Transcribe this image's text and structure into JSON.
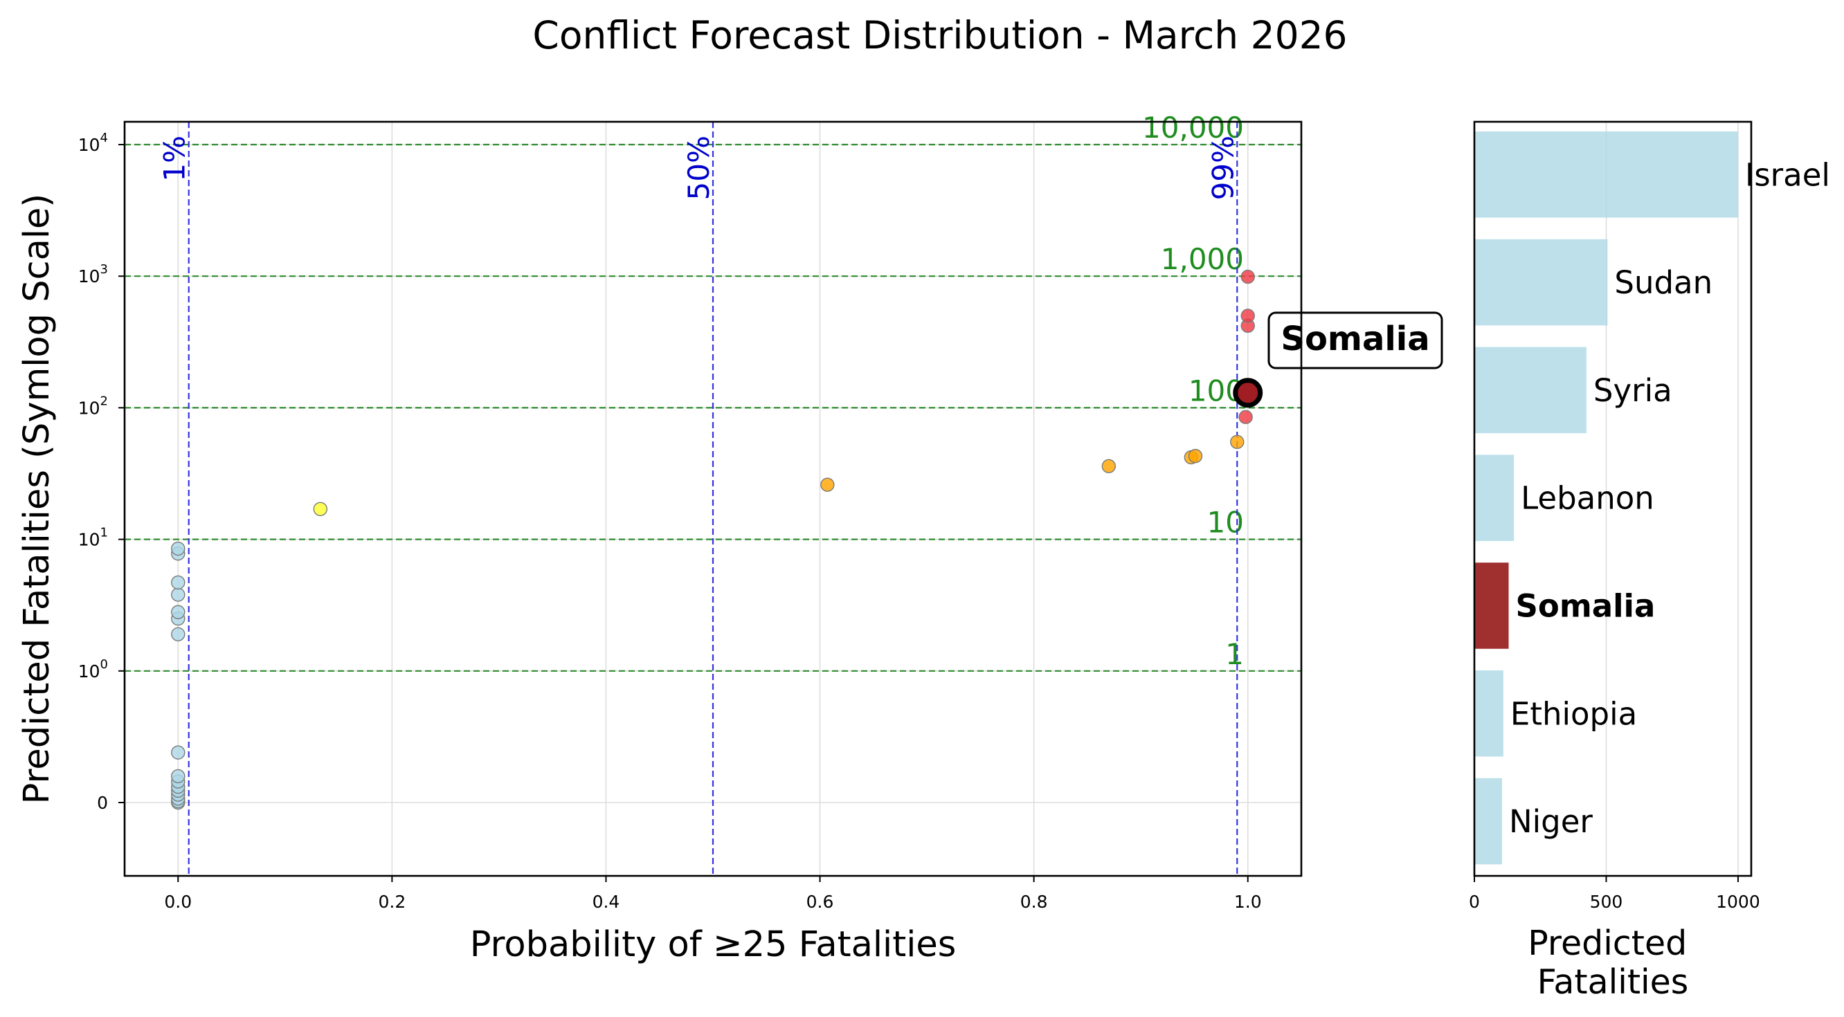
{
  "figure": {
    "title": "Conflict Forecast Distribution - March 2026"
  },
  "colors": {
    "low_point": "#add8e6",
    "mid_low_point": "#ffff33",
    "mid_point": "#ffa500",
    "high_point": "#f03c46",
    "highlight": "#a01e23",
    "highlight_bar": "#a03030",
    "bar": "#add8e6",
    "prob_line": "#3333dd",
    "fatality_line": "#2e8b2e",
    "fatality_label": "#1e8c1e",
    "prob_label": "#0000cc"
  },
  "chart_data": [
    {
      "type": "scatter",
      "xlabel": "Probability of ≥25 Fatalities",
      "ylabel": "Predicted Fatalities (Symlog Scale)",
      "xlim": [
        -0.05,
        1.05
      ],
      "ylim": [
        -0.7,
        12000
      ],
      "yscale": "symlog",
      "grid": true,
      "x_ticks": [
        {
          "value": 0.0,
          "label": "0.0"
        },
        {
          "value": 0.2,
          "label": "0.2"
        },
        {
          "value": 0.4,
          "label": "0.4"
        },
        {
          "value": 0.6,
          "label": "0.6"
        },
        {
          "value": 0.8,
          "label": "0.8"
        },
        {
          "value": 1.0,
          "label": "1.0"
        }
      ],
      "y_ticks": [
        {
          "value": 0,
          "base": "0",
          "exp": ""
        },
        {
          "value": 1,
          "base": "10",
          "exp": "0"
        },
        {
          "value": 10,
          "base": "10",
          "exp": "1"
        },
        {
          "value": 100,
          "base": "10",
          "exp": "2"
        },
        {
          "value": 1000,
          "base": "10",
          "exp": "3"
        },
        {
          "value": 10000,
          "base": "10",
          "exp": "4"
        }
      ],
      "probability_lines": [
        {
          "x": 0.01,
          "label": "1%"
        },
        {
          "x": 0.5,
          "label": "50%"
        },
        {
          "x": 0.99,
          "label": "99%"
        }
      ],
      "fatality_lines": [
        {
          "y": 1,
          "label": "1"
        },
        {
          "y": 10,
          "label": "10"
        },
        {
          "y": 100,
          "label": "100"
        },
        {
          "y": 1000,
          "label": "1,000"
        },
        {
          "y": 10000,
          "label": "10,000"
        }
      ],
      "points": [
        {
          "x": 0.0,
          "y": 0.0,
          "group": "low"
        },
        {
          "x": 0.0,
          "y": 0.01,
          "group": "low"
        },
        {
          "x": 0.0,
          "y": 0.03,
          "group": "low"
        },
        {
          "x": 0.0,
          "y": 0.06,
          "group": "low"
        },
        {
          "x": 0.0,
          "y": 0.09,
          "group": "low"
        },
        {
          "x": 0.0,
          "y": 0.12,
          "group": "low"
        },
        {
          "x": 0.0,
          "y": 0.16,
          "group": "low"
        },
        {
          "x": 0.0,
          "y": 0.2,
          "group": "low"
        },
        {
          "x": 0.0,
          "y": 0.38,
          "group": "low"
        },
        {
          "x": 0.0,
          "y": 1.9,
          "group": "low"
        },
        {
          "x": 0.0,
          "y": 2.5,
          "group": "low"
        },
        {
          "x": 0.0,
          "y": 2.8,
          "group": "low"
        },
        {
          "x": 0.0,
          "y": 3.8,
          "group": "low"
        },
        {
          "x": 0.0,
          "y": 4.7,
          "group": "low"
        },
        {
          "x": 0.0,
          "y": 7.8,
          "group": "low"
        },
        {
          "x": 0.0,
          "y": 8.5,
          "group": "low"
        },
        {
          "x": 0.133,
          "y": 17,
          "group": "mid_low"
        },
        {
          "x": 0.607,
          "y": 26,
          "group": "mid"
        },
        {
          "x": 0.87,
          "y": 36,
          "group": "mid"
        },
        {
          "x": 0.947,
          "y": 42,
          "group": "mid"
        },
        {
          "x": 0.951,
          "y": 43,
          "group": "mid"
        },
        {
          "x": 0.99,
          "y": 55,
          "group": "mid"
        },
        {
          "x": 0.998,
          "y": 85,
          "group": "high"
        },
        {
          "x": 1.0,
          "y": 420,
          "group": "high"
        },
        {
          "x": 1.0,
          "y": 500,
          "group": "high"
        },
        {
          "x": 1.0,
          "y": 990,
          "group": "high"
        }
      ],
      "highlight": {
        "x": 1.0,
        "y": 130,
        "label": "Somalia"
      }
    },
    {
      "type": "bar",
      "orientation": "horizontal",
      "xlabel_lines": [
        "Predicted",
        "Fatalities"
      ],
      "xlim": [
        0,
        1050
      ],
      "x_ticks": [
        {
          "value": 0,
          "label": "0"
        },
        {
          "value": 500,
          "label": "500"
        },
        {
          "value": 1000,
          "label": "1000"
        }
      ],
      "grid": true,
      "bars": [
        {
          "label": "Israel",
          "value": 1000,
          "highlight": false
        },
        {
          "label": "Sudan",
          "value": 505,
          "highlight": false
        },
        {
          "label": "Syria",
          "value": 425,
          "highlight": false
        },
        {
          "label": "Lebanon",
          "value": 150,
          "highlight": false
        },
        {
          "label": "Somalia",
          "value": 130,
          "highlight": true
        },
        {
          "label": "Ethiopia",
          "value": 110,
          "highlight": false
        },
        {
          "label": "Niger",
          "value": 105,
          "highlight": false
        }
      ]
    }
  ]
}
